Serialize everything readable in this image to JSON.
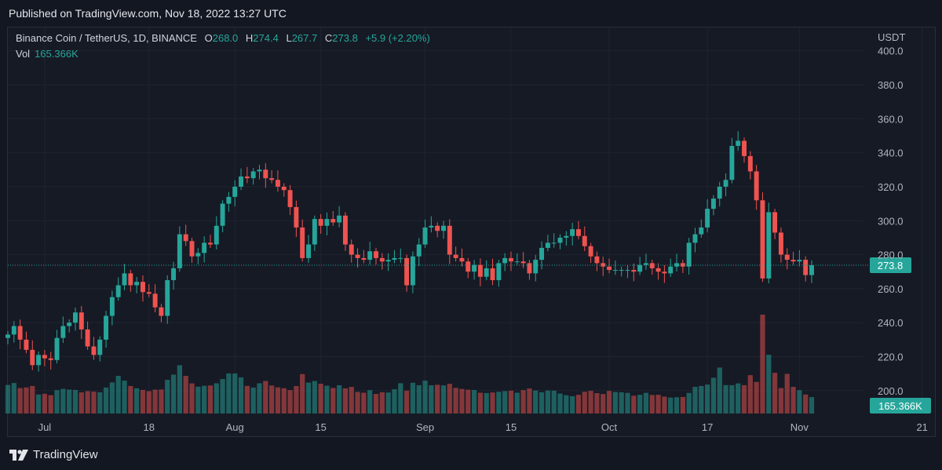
{
  "header": {
    "published": "Published on TradingView.com, Nov 18, 2022 13:27 UTC"
  },
  "legend": {
    "symbol": "Binance Coin / TetherUS, 1D, BINANCE",
    "o_key": "O",
    "o_val": "268.0",
    "h_key": "H",
    "h_val": "274.4",
    "l_key": "L",
    "l_val": "267.7",
    "c_key": "C",
    "c_val": "273.8",
    "change": "+5.9 (+2.20%)",
    "vol_key": "Vol",
    "vol_val": "165.366K"
  },
  "footer": {
    "brand": "TradingView"
  },
  "colors": {
    "up": "#26a69a",
    "down": "#ef5350",
    "background": "#161a25",
    "grid": "#1f2430",
    "axis_text": "#b2b5be"
  },
  "chart_data": {
    "type": "candlestick",
    "instrument": "Binance Coin / TetherUS",
    "interval": "1D",
    "exchange": "BINANCE",
    "currency": "USDT",
    "ylim": [
      187,
      404
    ],
    "y_ticks": [
      200.0,
      220.0,
      240.0,
      260.0,
      280.0,
      300.0,
      320.0,
      340.0,
      360.0,
      380.0,
      400.0
    ],
    "x_ticks": [
      {
        "label": "Jul",
        "date": "2022-07-01"
      },
      {
        "label": "18",
        "date": "2022-07-18"
      },
      {
        "label": "Aug",
        "date": "2022-08-01"
      },
      {
        "label": "15",
        "date": "2022-08-15"
      },
      {
        "label": "Sep",
        "date": "2022-09-01"
      },
      {
        "label": "15",
        "date": "2022-09-15"
      },
      {
        "label": "Oct",
        "date": "2022-10-01"
      },
      {
        "label": "17",
        "date": "2022-10-17"
      },
      {
        "label": "Nov",
        "date": "2022-11-01"
      },
      {
        "label": "21",
        "date": "2022-11-21"
      }
    ],
    "start_date": "2022-06-25",
    "last_price": "273.8",
    "last_volume": "165.366K",
    "closes": [
      233.0,
      238.0,
      230.0,
      224.0,
      215.0,
      221.0,
      219.0,
      218.0,
      231.0,
      238.0,
      240.0,
      246.0,
      236.0,
      226.0,
      221.0,
      230.0,
      244.0,
      255.0,
      262.0,
      269.0,
      262.0,
      264.0,
      258.0,
      257.0,
      249.0,
      244.0,
      265.0,
      272.0,
      292.0,
      288.0,
      279.0,
      281.0,
      287.0,
      286.0,
      297.0,
      310.0,
      314.0,
      320.0,
      326.0,
      325.0,
      329.0,
      330.0,
      325.0,
      324.0,
      320.0,
      318.0,
      308.0,
      296.0,
      278.0,
      286.0,
      301.0,
      297.0,
      301.0,
      299.0,
      303.0,
      286.0,
      280.0,
      278.0,
      277.0,
      282.0,
      278.0,
      276.0,
      277.0,
      278.0,
      278.0,
      262.0,
      279.0,
      286.0,
      296.0,
      297.0,
      294.0,
      297.0,
      280.0,
      278.0,
      276.0,
      270.0,
      274.0,
      267.0,
      272.0,
      265.0,
      275.0,
      278.0,
      276.0,
      276.0,
      275.0,
      269.0,
      277.0,
      284.0,
      287.0,
      287.0,
      290.0,
      291.0,
      295.0,
      291.0,
      285.0,
      279.0,
      275.0,
      273.0,
      271.0,
      271.0,
      271.0,
      271.0,
      270.0,
      274.0,
      275.0,
      272.0,
      270.0,
      269.0,
      273.0,
      275.0,
      273.0,
      287.0,
      292.0,
      296.0,
      307.0,
      313.0,
      320.0,
      324.0,
      344.0,
      347.0,
      338.0,
      329.0,
      312.0,
      266.0,
      305.0,
      293.0,
      280.0,
      277.0,
      276.0,
      277.0,
      268.0,
      273.8
    ],
    "volumes_k": [
      288,
      308,
      257,
      263,
      278,
      192,
      199,
      185,
      236,
      249,
      241,
      238,
      213,
      226,
      221,
      214,
      263,
      314,
      380,
      332,
      278,
      255,
      238,
      226,
      241,
      242,
      340,
      393,
      487,
      380,
      304,
      271,
      280,
      283,
      305,
      348,
      405,
      404,
      365,
      279,
      262,
      305,
      328,
      283,
      264,
      255,
      236,
      277,
      398,
      312,
      328,
      301,
      281,
      258,
      285,
      254,
      269,
      218,
      210,
      236,
      198,
      215,
      212,
      245,
      306,
      231,
      310,
      286,
      332,
      285,
      290,
      284,
      300,
      259,
      248,
      240,
      237,
      210,
      207,
      212,
      219,
      226,
      230,
      210,
      236,
      253,
      232,
      214,
      232,
      231,
      202,
      185,
      175,
      189,
      219,
      229,
      206,
      197,
      228,
      217,
      214,
      209,
      180,
      189,
      209,
      187,
      189,
      171,
      161,
      164,
      167,
      208,
      269,
      278,
      292,
      361,
      464,
      287,
      286,
      304,
      286,
      387,
      319,
      998,
      593,
      411,
      257,
      400,
      269,
      235,
      192,
      165.366
    ]
  }
}
